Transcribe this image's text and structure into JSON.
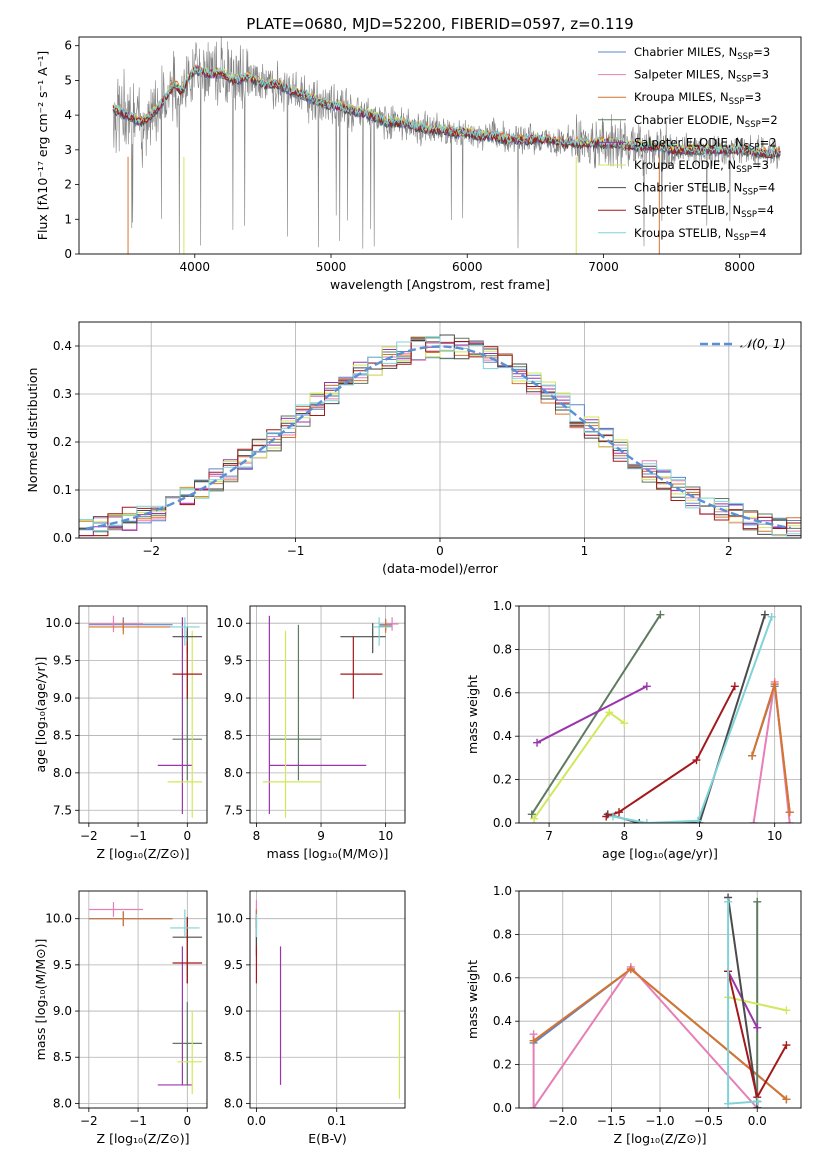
{
  "figure_title": "PLATE=0680, MJD=52200, FIBERID=0597, z=0.119",
  "colors": {
    "Chabrier MILES": "#5b86c9",
    "Salpeter MILES": "#e67fb6",
    "Kroupa MILES": "#d6742e",
    "Chabrier ELODIE": "#5e7a60",
    "Salpeter ELODIE": "#9b35ad",
    "Kroupa ELODIE": "#d0e85a",
    "Chabrier STELIB": "#4b4b4b",
    "Salpeter STELIB": "#a3191c",
    "Kroupa STELIB": "#7fd3d8",
    "data": "#808080",
    "normal": "#5b8fd6"
  },
  "chart_data": [
    {
      "id": "spectrum",
      "type": "line",
      "title": "PLATE=0680, MJD=52200, FIBERID=0597, z=0.119",
      "xlabel": "wavelength [Angstrom, rest frame]",
      "ylabel": "Flux [fλ10⁻¹⁷ erg cm⁻² s⁻¹ A⁻¹]",
      "xlim": [
        3150,
        8450
      ],
      "ylim": [
        0,
        6.25
      ],
      "xticks": [
        4000,
        5000,
        6000,
        7000,
        8000
      ],
      "yticks": [
        0,
        1,
        2,
        3,
        4,
        5,
        6
      ],
      "legend_position": "right",
      "legend": [
        {
          "name": "Chabrier MILES",
          "sub": "SSP",
          "n": "3"
        },
        {
          "name": "Salpeter MILES",
          "sub": "SSP",
          "n": "3"
        },
        {
          "name": "Kroupa MILES",
          "sub": "SSP",
          "n": "3"
        },
        {
          "name": "Chabrier ELODIE",
          "sub": "SSP",
          "n": "2"
        },
        {
          "name": "Salpeter ELODIE",
          "sub": "SSP",
          "n": "2"
        },
        {
          "name": "Kroupa ELODIE",
          "sub": "SSP",
          "n": "3"
        },
        {
          "name": "Chabrier STELIB",
          "sub": "SSP",
          "n": "4"
        },
        {
          "name": "Salpeter STELIB",
          "sub": "SSP",
          "n": "4"
        },
        {
          "name": "Kroupa STELIB",
          "sub": "SSP",
          "n": "4"
        }
      ],
      "model_curve": {
        "x": [
          3400,
          3450,
          3500,
          3550,
          3600,
          3650,
          3700,
          3750,
          3800,
          3850,
          3900,
          3950,
          4000,
          4100,
          4200,
          4300,
          4400,
          4500,
          4600,
          4700,
          4800,
          4900,
          5000,
          5100,
          5200,
          5300,
          5400,
          5500,
          5600,
          5700,
          5800,
          5900,
          6000,
          6100,
          6200,
          6300,
          6400,
          6500,
          6600,
          6700,
          6800,
          6900,
          7000,
          7100,
          7200,
          7300,
          7400,
          7500,
          7600,
          7700,
          7800,
          7900,
          8000,
          8100,
          8200
        ],
        "y": [
          4.2,
          4.1,
          4.0,
          3.9,
          3.8,
          3.9,
          4.1,
          4.3,
          4.6,
          4.9,
          4.7,
          5.0,
          5.3,
          5.2,
          5.2,
          5.0,
          5.1,
          4.9,
          4.9,
          4.7,
          4.6,
          4.4,
          4.3,
          4.2,
          4.1,
          4.0,
          3.8,
          3.8,
          3.7,
          3.6,
          3.6,
          3.5,
          3.5,
          3.4,
          3.4,
          3.3,
          3.3,
          3.3,
          3.3,
          3.2,
          3.2,
          3.2,
          3.2,
          3.2,
          3.1,
          3.1,
          3.1,
          3.0,
          3.0,
          3.0,
          3.0,
          3.0,
          3.0,
          2.95,
          2.9
        ]
      }
    },
    {
      "id": "residuals",
      "type": "histogram",
      "xlabel": "(data-model)/error",
      "ylabel": "Normed distribution",
      "xlim": [
        -2.5,
        2.5
      ],
      "ylim": [
        0,
        0.45
      ],
      "xticks": [
        -2,
        -1,
        0,
        1,
        2
      ],
      "yticks": [
        0.0,
        0.1,
        0.2,
        0.3,
        0.4
      ],
      "legend_position": "top-right",
      "series_normal": {
        "name": "𝒩(0, 1)",
        "mu": 0,
        "sigma": 1
      },
      "bin_width": 0.1,
      "bin_start": -2.5
    },
    {
      "id": "age_vs_Z",
      "type": "errorbar",
      "xlabel": "Z [log₁₀(Z/Z⊙)]",
      "ylabel": "age  [log₁₀(age/yr)]",
      "xlim": [
        -2.2,
        0.4
      ],
      "ylim": [
        7.33,
        10.23
      ],
      "xticks": [
        -2,
        -1,
        0
      ],
      "yticks": [
        7.5,
        8.0,
        8.5,
        9.0,
        9.5,
        10.0
      ],
      "points": [
        {
          "s": "Chabrier MILES",
          "x": -1.3,
          "y": 9.98,
          "ex": [
            -2.0,
            -0.3
          ],
          "ey": [
            9.9,
            10.08
          ]
        },
        {
          "s": "Salpeter MILES",
          "x": -1.5,
          "y": 9.99,
          "ex": [
            -2.0,
            -0.9
          ],
          "ey": [
            9.88,
            10.1
          ]
        },
        {
          "s": "Kroupa MILES",
          "x": -1.3,
          "y": 9.95,
          "ex": [
            -2.0,
            -0.3
          ],
          "ey": [
            9.85,
            10.05
          ]
        },
        {
          "s": "Chabrier ELODIE",
          "x": 0.0,
          "y": 8.45,
          "ex": [
            -0.3,
            0.3
          ],
          "ey": [
            7.9,
            9.9
          ]
        },
        {
          "s": "Salpeter ELODIE",
          "x": -0.1,
          "y": 8.1,
          "ex": [
            -0.6,
            0.1
          ],
          "ey": [
            7.45,
            10.08
          ]
        },
        {
          "s": "Kroupa ELODIE",
          "x": 0.1,
          "y": 7.88,
          "ex": [
            -0.4,
            0.3
          ],
          "ey": [
            7.4,
            9.9
          ]
        },
        {
          "s": "Chabrier STELIB",
          "x": 0.0,
          "y": 9.82,
          "ex": [
            -0.3,
            0.3
          ],
          "ey": [
            9.6,
            9.95
          ]
        },
        {
          "s": "Salpeter STELIB",
          "x": 0.0,
          "y": 9.32,
          "ex": [
            -0.3,
            0.3
          ],
          "ey": [
            8.99,
            9.75
          ]
        },
        {
          "s": "Kroupa STELIB",
          "x": -0.05,
          "y": 9.95,
          "ex": [
            -0.35,
            0.25
          ],
          "ey": [
            9.7,
            10.08
          ]
        }
      ]
    },
    {
      "id": "age_vs_mass",
      "type": "errorbar",
      "xlabel": "mass [log₁₀(M/M⊙)]",
      "ylabel": "",
      "xlim": [
        7.9,
        10.3
      ],
      "ylim": [
        7.33,
        10.23
      ],
      "xticks": [
        8,
        9,
        10
      ],
      "yticks": [
        7.5,
        8.0,
        8.5,
        9.0,
        9.5,
        10.0
      ],
      "points": [
        {
          "s": "Chabrier MILES",
          "x": 10.0,
          "y": 9.98,
          "ex": [
            9.9,
            10.1
          ],
          "ey": [
            9.9,
            10.06
          ]
        },
        {
          "s": "Salpeter MILES",
          "x": 10.1,
          "y": 9.99,
          "ex": [
            10.0,
            10.2
          ],
          "ey": [
            9.9,
            10.08
          ]
        },
        {
          "s": "Kroupa MILES",
          "x": 10.0,
          "y": 9.96,
          "ex": [
            9.9,
            10.1
          ],
          "ey": [
            9.87,
            10.05
          ]
        },
        {
          "s": "Chabrier ELODIE",
          "x": 8.65,
          "y": 8.45,
          "ex": [
            8.2,
            9.0
          ],
          "ey": [
            7.9,
            9.98
          ]
        },
        {
          "s": "Salpeter ELODIE",
          "x": 8.2,
          "y": 8.1,
          "ex": [
            8.2,
            9.7
          ],
          "ey": [
            7.45,
            10.1
          ]
        },
        {
          "s": "Kroupa ELODIE",
          "x": 8.45,
          "y": 7.88,
          "ex": [
            8.1,
            9.0
          ],
          "ey": [
            7.4,
            9.9
          ]
        },
        {
          "s": "Chabrier STELIB",
          "x": 9.8,
          "y": 9.82,
          "ex": [
            9.3,
            10.0
          ],
          "ey": [
            9.6,
            10.0
          ]
        },
        {
          "s": "Salpeter STELIB",
          "x": 9.5,
          "y": 9.32,
          "ex": [
            9.3,
            9.95
          ],
          "ey": [
            8.99,
            9.82
          ]
        },
        {
          "s": "Kroupa STELIB",
          "x": 9.9,
          "y": 9.95,
          "ex": [
            9.8,
            10.1
          ],
          "ey": [
            9.7,
            10.08
          ]
        }
      ]
    },
    {
      "id": "weight_vs_age",
      "type": "line",
      "xlabel": "age  [log₁₀(age/yr)]",
      "ylabel": "mass weight",
      "xlim": [
        6.6,
        10.35
      ],
      "ylim": [
        0,
        1.0
      ],
      "xticks": [
        7,
        8,
        9,
        10
      ],
      "yticks": [
        0.0,
        0.2,
        0.4,
        0.6,
        0.8,
        1.0
      ],
      "series": [
        {
          "name": "Chabrier MILES",
          "x": [
            9.7,
            10.0,
            10.2
          ],
          "y": [
            0.31,
            0.63,
            0.05
          ]
        },
        {
          "name": "Salpeter MILES",
          "x": [
            9.72,
            10.0,
            10.2
          ],
          "y": [
            0.0,
            0.65,
            0.0
          ]
        },
        {
          "name": "Kroupa MILES",
          "x": [
            9.7,
            10.0,
            10.2
          ],
          "y": [
            0.31,
            0.64,
            0.05
          ]
        },
        {
          "name": "Chabrier ELODIE",
          "x": [
            6.77,
            8.48
          ],
          "y": [
            0.04,
            0.96
          ]
        },
        {
          "name": "Salpeter ELODIE",
          "x": [
            6.84,
            8.3
          ],
          "y": [
            0.37,
            0.63
          ]
        },
        {
          "name": "Kroupa ELODIE",
          "x": [
            6.8,
            7.8,
            8.0
          ],
          "y": [
            0.02,
            0.51,
            0.46
          ]
        },
        {
          "name": "Chabrier STELIB",
          "x": [
            7.78,
            8.2,
            9.0,
            9.87
          ],
          "y": [
            0.04,
            0.0,
            0.0,
            0.96
          ]
        },
        {
          "name": "Salpeter STELIB",
          "x": [
            7.76,
            7.93,
            8.96,
            9.47
          ],
          "y": [
            0.03,
            0.05,
            0.29,
            0.63
          ]
        },
        {
          "name": "Kroupa STELIB",
          "x": [
            7.85,
            8.3,
            8.98,
            9.96
          ],
          "y": [
            0.03,
            0.0,
            0.01,
            0.95
          ]
        }
      ]
    },
    {
      "id": "mass_vs_Z",
      "type": "errorbar",
      "xlabel": "Z [log₁₀(Z/Z⊙)]",
      "ylabel": "mass [log₁₀(M/M⊙)]",
      "xlim": [
        -2.2,
        0.4
      ],
      "ylim": [
        7.95,
        10.3
      ],
      "xticks": [
        -2,
        -1,
        0
      ],
      "yticks": [
        8.0,
        8.5,
        9.0,
        9.5,
        10.0
      ],
      "points": [
        {
          "s": "Chabrier MILES",
          "x": -1.3,
          "y": 10.0,
          "ex": [
            -2.0,
            -0.3
          ],
          "ey": [
            9.92,
            10.08
          ]
        },
        {
          "s": "Salpeter MILES",
          "x": -1.5,
          "y": 10.1,
          "ex": [
            -2.0,
            -0.9
          ],
          "ey": [
            10.02,
            10.18
          ]
        },
        {
          "s": "Kroupa MILES",
          "x": -1.3,
          "y": 10.0,
          "ex": [
            -2.0,
            -0.3
          ],
          "ey": [
            9.92,
            10.08
          ]
        },
        {
          "s": "Chabrier ELODIE",
          "x": 0.0,
          "y": 8.65,
          "ex": [
            -0.3,
            0.3
          ],
          "ey": [
            8.2,
            9.1
          ]
        },
        {
          "s": "Salpeter ELODIE",
          "x": -0.1,
          "y": 8.2,
          "ex": [
            -0.6,
            0.1
          ],
          "ey": [
            8.2,
            9.7
          ]
        },
        {
          "s": "Kroupa ELODIE",
          "x": 0.1,
          "y": 8.45,
          "ex": [
            -0.2,
            0.3
          ],
          "ey": [
            8.1,
            9.0
          ]
        },
        {
          "s": "Chabrier STELIB",
          "x": 0.0,
          "y": 9.8,
          "ex": [
            -0.3,
            0.3
          ],
          "ey": [
            9.3,
            10.0
          ]
        },
        {
          "s": "Salpeter STELIB",
          "x": 0.0,
          "y": 9.52,
          "ex": [
            -0.3,
            0.3
          ],
          "ey": [
            9.3,
            10.02
          ]
        },
        {
          "s": "Kroupa STELIB",
          "x": -0.05,
          "y": 9.9,
          "ex": [
            -0.35,
            0.25
          ],
          "ey": [
            9.8,
            10.1
          ]
        }
      ]
    },
    {
      "id": "mass_vs_ebv",
      "type": "errorbar",
      "xlabel": "E(B-V)",
      "ylabel": "",
      "xlim": [
        -0.008,
        0.185
      ],
      "ylim": [
        7.95,
        10.3
      ],
      "xticks": [
        0.0,
        0.1
      ],
      "yticks": [
        8.0,
        8.5,
        9.0,
        9.5,
        10.0
      ],
      "points": [
        {
          "s": "Chabrier MILES",
          "x": 0.0,
          "y": 10.0,
          "ex": [
            0.0,
            0.0
          ],
          "ey": [
            9.9,
            10.1
          ]
        },
        {
          "s": "Salpeter MILES",
          "x": 0.0,
          "y": 10.1,
          "ex": [
            0.0,
            0.0
          ],
          "ey": [
            10.0,
            10.2
          ]
        },
        {
          "s": "Kroupa MILES",
          "x": 0.0,
          "y": 10.0,
          "ex": [
            0.0,
            0.0
          ],
          "ey": [
            9.9,
            10.1
          ]
        },
        {
          "s": "Chabrier ELODIE",
          "x": 0.0,
          "y": 9.9,
          "ex": [
            0.0,
            0.0
          ],
          "ey": [
            9.7,
            10.05
          ]
        },
        {
          "s": "Salpeter ELODIE",
          "x": 0.03,
          "y": 8.9,
          "ex": [
            0.03,
            0.03
          ],
          "ey": [
            8.2,
            9.7
          ]
        },
        {
          "s": "Kroupa ELODIE",
          "x": 0.178,
          "y": 8.5,
          "ex": [
            0.178,
            0.178
          ],
          "ey": [
            8.05,
            9.0
          ]
        },
        {
          "s": "Chabrier STELIB",
          "x": 0.0,
          "y": 9.8,
          "ex": [
            0.0,
            0.0
          ],
          "ey": [
            9.6,
            10.0
          ]
        },
        {
          "s": "Salpeter STELIB",
          "x": 0.0,
          "y": 9.5,
          "ex": [
            0.0,
            0.0
          ],
          "ey": [
            9.3,
            9.7
          ]
        },
        {
          "s": "Kroupa STELIB",
          "x": 0.0,
          "y": 9.9,
          "ex": [
            0.0,
            0.0
          ],
          "ey": [
            9.8,
            10.05
          ]
        }
      ]
    },
    {
      "id": "weight_vs_Z",
      "type": "line",
      "xlabel": "Z [log₁₀(Z/Z⊙)]",
      "ylabel": "mass weight",
      "xlim": [
        -2.45,
        0.45
      ],
      "ylim": [
        0,
        1.0
      ],
      "xticks": [
        -2.0,
        -1.5,
        -1.0,
        -0.5,
        0.0
      ],
      "yticks": [
        0.0,
        0.2,
        0.4,
        0.6,
        0.8,
        1.0
      ],
      "series": [
        {
          "name": "Chabrier MILES",
          "x": [
            -2.3,
            -1.3,
            0.3
          ],
          "y": [
            0.3,
            0.64,
            0.04
          ]
        },
        {
          "name": "Salpeter MILES",
          "x": [
            -2.3,
            -2.3,
            -1.3,
            0.0
          ],
          "y": [
            0.34,
            0.0,
            0.65,
            0.0
          ]
        },
        {
          "name": "Kroupa MILES",
          "x": [
            -2.3,
            -1.3,
            0.3
          ],
          "y": [
            0.31,
            0.64,
            0.04
          ]
        },
        {
          "name": "Chabrier ELODIE",
          "x": [
            0.0,
            0.0
          ],
          "y": [
            0.0,
            0.95
          ]
        },
        {
          "name": "Salpeter ELODIE",
          "x": [
            -0.3,
            0.0
          ],
          "y": [
            0.63,
            0.37
          ]
        },
        {
          "name": "Kroupa ELODIE",
          "x": [
            -0.3,
            0.3
          ],
          "y": [
            0.51,
            0.45
          ]
        },
        {
          "name": "Chabrier STELIB",
          "x": [
            -0.3,
            0.0,
            0.0
          ],
          "y": [
            0.97,
            0.03,
            0.0
          ]
        },
        {
          "name": "Salpeter STELIB",
          "x": [
            -0.3,
            0.0,
            0.3
          ],
          "y": [
            0.63,
            0.05,
            0.29
          ]
        },
        {
          "name": "Kroupa STELIB",
          "x": [
            -0.3,
            -0.3,
            0.0
          ],
          "y": [
            0.95,
            0.02,
            0.03
          ]
        }
      ]
    }
  ]
}
